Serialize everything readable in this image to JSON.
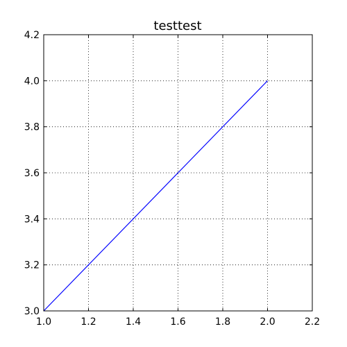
{
  "chart_data": {
    "type": "line",
    "title": "testtest",
    "xlabel": "",
    "ylabel": "",
    "xlim": [
      1.0,
      2.2
    ],
    "ylim": [
      3.0,
      4.2
    ],
    "xticks": [
      "1.0",
      "1.2",
      "1.4",
      "1.6",
      "1.8",
      "2.0",
      "2.2"
    ],
    "yticks": [
      "3.0",
      "3.2",
      "3.4",
      "3.6",
      "3.8",
      "4.0",
      "4.2"
    ],
    "grid": true,
    "series": [
      {
        "color": "#0000ff",
        "x": [
          1.0,
          2.0
        ],
        "y": [
          3.0,
          4.0
        ]
      }
    ]
  }
}
